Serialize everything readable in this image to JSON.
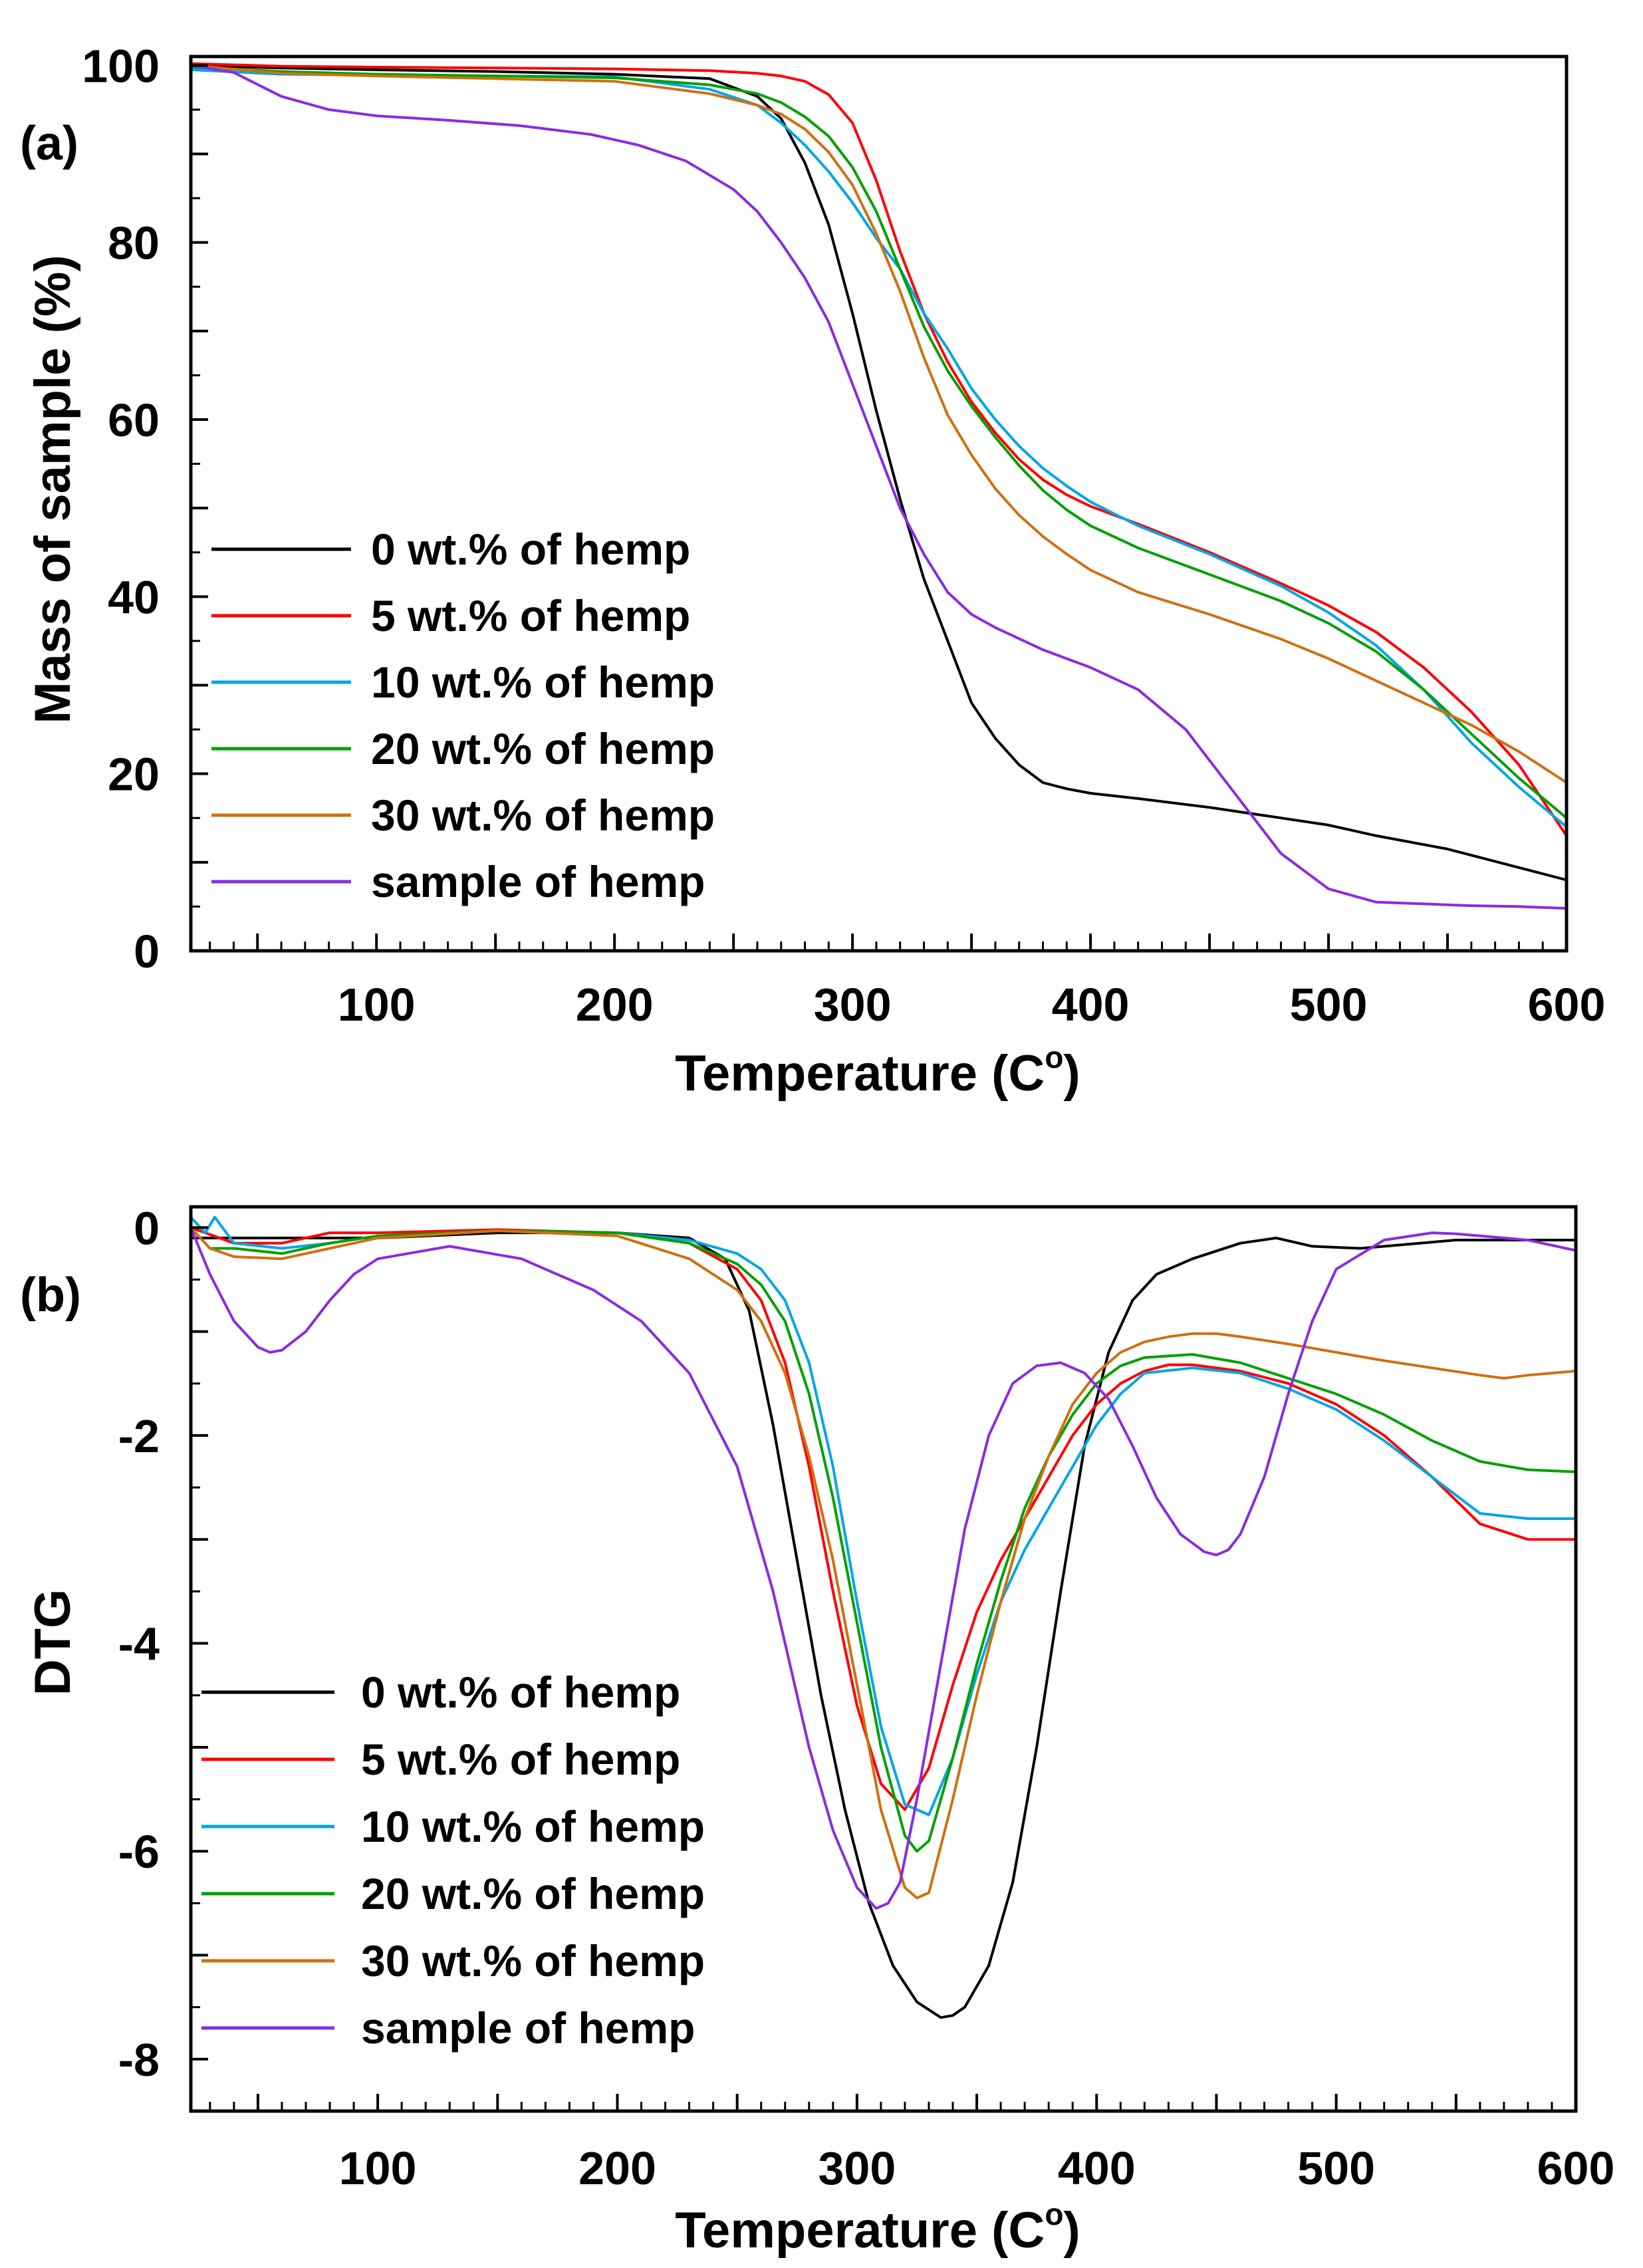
{
  "chart_data": [
    {
      "type": "line",
      "panel_label": "(a)",
      "xlabel": "Temperature (C",
      "xlabel_sup": "o",
      "xlabel_tail": ")",
      "ylabel": "Mass of sample (%)",
      "xlim": [
        22,
        600
      ],
      "ylim": [
        0,
        101
      ],
      "xticks": [
        100,
        200,
        300,
        400,
        500,
        600
      ],
      "xtick_labels": [
        "100",
        "200",
        "300",
        "400",
        "500",
        "600"
      ],
      "yticks": [
        0,
        20,
        40,
        60,
        80,
        100
      ],
      "ytick_labels": [
        "0",
        "20",
        "40",
        "60",
        "80",
        "100"
      ],
      "legend_position": "lower-left",
      "series": [
        {
          "name": "0 wt.% of hemp",
          "color": "#000000",
          "x": [
            22,
            60,
            100,
            150,
            200,
            240,
            260,
            270,
            280,
            290,
            300,
            310,
            320,
            330,
            340,
            350,
            360,
            370,
            380,
            390,
            400,
            420,
            450,
            480,
            500,
            520,
            550,
            580,
            600
          ],
          "y": [
            100,
            99.7,
            99.5,
            99.3,
            99,
            98.5,
            96.5,
            94,
            89,
            82,
            72,
            61,
            51,
            42,
            35,
            28,
            24,
            21,
            19,
            18.3,
            17.8,
            17.2,
            16.2,
            15,
            14.2,
            13,
            11.5,
            9.4,
            8
          ]
        },
        {
          "name": "5 wt.% of hemp",
          "color": "#ff0000",
          "x": [
            22,
            60,
            100,
            150,
            200,
            240,
            260,
            270,
            280,
            290,
            300,
            310,
            320,
            330,
            340,
            350,
            360,
            370,
            380,
            390,
            400,
            420,
            450,
            480,
            500,
            520,
            540,
            560,
            580,
            600
          ],
          "y": [
            100.2,
            99.9,
            99.8,
            99.7,
            99.6,
            99.4,
            99.1,
            98.8,
            98.2,
            96.7,
            93.5,
            87,
            79,
            72,
            66.5,
            62,
            58.5,
            55.5,
            53.2,
            51.5,
            50.2,
            48.2,
            45,
            41.5,
            39,
            36,
            32,
            27,
            21,
            13
          ]
        },
        {
          "name": "10 wt.% of hemp",
          "color": "#00a6e6",
          "x": [
            22,
            60,
            100,
            150,
            200,
            240,
            260,
            270,
            280,
            290,
            300,
            310,
            320,
            330,
            340,
            350,
            360,
            370,
            380,
            390,
            400,
            420,
            450,
            480,
            500,
            520,
            540,
            560,
            580,
            600
          ],
          "y": [
            99.5,
            99,
            98.9,
            98.8,
            98.7,
            97.3,
            95.5,
            93.5,
            91,
            88,
            84.5,
            80.5,
            77,
            72,
            68,
            63.5,
            60,
            57,
            54.5,
            52.5,
            50.7,
            48,
            44.8,
            41.2,
            38.2,
            34.5,
            29.5,
            23.5,
            18.5,
            14
          ]
        },
        {
          "name": "20 wt.% of hemp",
          "color": "#00a000",
          "x": [
            22,
            60,
            100,
            150,
            200,
            240,
            260,
            270,
            280,
            290,
            300,
            310,
            320,
            330,
            340,
            350,
            360,
            370,
            380,
            390,
            400,
            420,
            450,
            480,
            500,
            520,
            540,
            560,
            580,
            600
          ],
          "y": [
            99.8,
            99.3,
            99,
            98.8,
            98.6,
            97.8,
            96.8,
            95.8,
            94.2,
            92,
            88.5,
            83.5,
            77,
            70.5,
            65.5,
            61.5,
            58,
            54.8,
            52,
            49.8,
            48,
            45.5,
            42.5,
            39.5,
            37,
            33.8,
            29.5,
            24.5,
            19.5,
            15
          ]
        },
        {
          "name": "30 wt.% of hemp",
          "color": "#d07010",
          "x": [
            22,
            60,
            100,
            150,
            200,
            240,
            260,
            270,
            280,
            290,
            300,
            310,
            320,
            330,
            340,
            350,
            360,
            370,
            380,
            390,
            400,
            420,
            450,
            480,
            500,
            520,
            540,
            560,
            580,
            600
          ],
          "y": [
            100,
            99.1,
            98.8,
            98.5,
            98.2,
            96.8,
            95.5,
            94.5,
            92.8,
            90.2,
            86.5,
            81,
            74.5,
            67,
            60.5,
            56,
            52.2,
            49.2,
            46.8,
            44.8,
            43,
            40.5,
            38,
            35.2,
            33,
            30.5,
            28,
            25.5,
            22.5,
            19
          ]
        },
        {
          "name": "sample of hemp",
          "color": "#8a2be2",
          "x": [
            22,
            40,
            60,
            80,
            100,
            130,
            160,
            190,
            210,
            230,
            250,
            260,
            270,
            280,
            290,
            300,
            310,
            320,
            330,
            340,
            350,
            360,
            380,
            400,
            420,
            440,
            460,
            480,
            500,
            520,
            540,
            560,
            580,
            600
          ],
          "y": [
            100,
            99.2,
            96.5,
            95,
            94.3,
            93.8,
            93.2,
            92.2,
            91,
            89.2,
            86,
            83.5,
            80,
            76,
            71,
            64,
            57,
            50,
            44.8,
            40.5,
            38,
            36.5,
            34,
            32,
            29.5,
            25,
            18,
            11,
            7,
            5.5,
            5.3,
            5.1,
            5,
            4.8
          ]
        }
      ]
    },
    {
      "type": "line",
      "panel_label": "(b)",
      "xlabel": "Temperature (C",
      "xlabel_sup": "o",
      "xlabel_tail": ")",
      "ylabel": "DTG",
      "xlim": [
        22,
        600
      ],
      "ylim": [
        -8.5,
        0.2
      ],
      "xticks": [
        100,
        200,
        300,
        400,
        500,
        600
      ],
      "xtick_labels": [
        "100",
        "200",
        "300",
        "400",
        "500",
        "600"
      ],
      "yticks": [
        0,
        -2,
        -4,
        -6,
        -8
      ],
      "ytick_labels": [
        "0",
        "-2",
        "-4",
        "-6",
        "-8"
      ],
      "legend_position": "lower-left",
      "series": [
        {
          "name": "0 wt.% of hemp",
          "color": "#000000",
          "x": [
            22,
            60,
            100,
            150,
            200,
            230,
            245,
            255,
            265,
            275,
            285,
            295,
            305,
            315,
            325,
            335,
            340,
            345,
            355,
            365,
            375,
            385,
            395,
            405,
            415,
            425,
            440,
            460,
            475,
            490,
            510,
            550,
            600
          ],
          "y": [
            -0.1,
            -0.1,
            -0.1,
            -0.05,
            -0.05,
            -0.1,
            -0.3,
            -0.8,
            -1.9,
            -3.2,
            -4.5,
            -5.6,
            -6.5,
            -7.1,
            -7.45,
            -7.6,
            -7.58,
            -7.5,
            -7.1,
            -6.3,
            -5,
            -3.5,
            -2.1,
            -1.2,
            -0.7,
            -0.45,
            -0.3,
            -0.15,
            -0.1,
            -0.18,
            -0.2,
            -0.12,
            -0.12
          ]
        },
        {
          "name": "5 wt.% of hemp",
          "color": "#ff0000",
          "x": [
            22,
            40,
            60,
            80,
            100,
            150,
            200,
            230,
            250,
            260,
            270,
            280,
            290,
            300,
            310,
            320,
            330,
            340,
            350,
            360,
            370,
            380,
            390,
            400,
            410,
            420,
            430,
            440,
            460,
            480,
            500,
            520,
            540,
            560,
            580,
            600
          ],
          "y": [
            0,
            -0.15,
            -0.15,
            -0.05,
            -0.05,
            -0.02,
            -0.05,
            -0.15,
            -0.4,
            -0.7,
            -1.3,
            -2.3,
            -3.5,
            -4.6,
            -5.35,
            -5.6,
            -5.2,
            -4.4,
            -3.7,
            -3.2,
            -2.8,
            -2.4,
            -2,
            -1.7,
            -1.5,
            -1.38,
            -1.32,
            -1.32,
            -1.38,
            -1.5,
            -1.7,
            -2,
            -2.4,
            -2.85,
            -3,
            -3
          ]
        },
        {
          "name": "10 wt.% of hemp",
          "color": "#00a6e6",
          "x": [
            22,
            28,
            32,
            40,
            60,
            80,
            100,
            150,
            200,
            230,
            250,
            260,
            270,
            280,
            290,
            300,
            310,
            320,
            330,
            340,
            350,
            360,
            370,
            380,
            390,
            400,
            410,
            420,
            440,
            460,
            480,
            500,
            520,
            540,
            560,
            580,
            600
          ],
          "y": [
            0.1,
            -0.05,
            0.1,
            -0.15,
            -0.2,
            -0.15,
            -0.08,
            -0.03,
            -0.05,
            -0.12,
            -0.25,
            -0.4,
            -0.7,
            -1.3,
            -2.3,
            -3.6,
            -4.8,
            -5.55,
            -5.65,
            -5.1,
            -4.3,
            -3.6,
            -3.1,
            -2.7,
            -2.3,
            -1.9,
            -1.6,
            -1.4,
            -1.35,
            -1.4,
            -1.55,
            -1.75,
            -2.05,
            -2.4,
            -2.75,
            -2.8,
            -2.8
          ]
        },
        {
          "name": "20 wt.% of hemp",
          "color": "#00a000",
          "x": [
            22,
            30,
            40,
            60,
            80,
            100,
            150,
            200,
            230,
            250,
            260,
            270,
            280,
            290,
            300,
            310,
            320,
            325,
            330,
            340,
            350,
            360,
            370,
            380,
            390,
            400,
            410,
            420,
            440,
            460,
            480,
            500,
            520,
            540,
            560,
            580,
            600
          ],
          "y": [
            0,
            -0.2,
            -0.2,
            -0.25,
            -0.15,
            -0.08,
            -0.03,
            -0.05,
            -0.15,
            -0.35,
            -0.55,
            -0.9,
            -1.6,
            -2.6,
            -3.8,
            -5,
            -5.85,
            -6,
            -5.9,
            -5.1,
            -4.2,
            -3.4,
            -2.7,
            -2.2,
            -1.8,
            -1.5,
            -1.33,
            -1.25,
            -1.22,
            -1.3,
            -1.45,
            -1.6,
            -1.8,
            -2.05,
            -2.25,
            -2.33,
            -2.35
          ]
        },
        {
          "name": "30 wt.% of hemp",
          "color": "#d07010",
          "x": [
            22,
            30,
            40,
            60,
            80,
            100,
            150,
            200,
            230,
            250,
            260,
            270,
            280,
            290,
            300,
            310,
            320,
            325,
            330,
            340,
            350,
            360,
            370,
            380,
            390,
            400,
            410,
            420,
            430,
            440,
            450,
            460,
            480,
            500,
            520,
            540,
            560,
            570,
            580,
            600
          ],
          "y": [
            0,
            -0.2,
            -0.28,
            -0.3,
            -0.2,
            -0.1,
            -0.03,
            -0.08,
            -0.3,
            -0.6,
            -0.9,
            -1.4,
            -2.2,
            -3.2,
            -4.4,
            -5.6,
            -6.35,
            -6.45,
            -6.4,
            -5.5,
            -4.5,
            -3.6,
            -2.8,
            -2.2,
            -1.7,
            -1.4,
            -1.2,
            -1.1,
            -1.05,
            -1.02,
            -1.02,
            -1.05,
            -1.12,
            -1.2,
            -1.28,
            -1.35,
            -1.42,
            -1.45,
            -1.42,
            -1.38
          ]
        },
        {
          "name": "sample of hemp",
          "color": "#8a2be2",
          "x": [
            22,
            30,
            40,
            50,
            55,
            60,
            70,
            80,
            90,
            100,
            130,
            160,
            190,
            210,
            230,
            250,
            265,
            280,
            290,
            300,
            308,
            313,
            318,
            325,
            335,
            345,
            355,
            365,
            375,
            385,
            395,
            405,
            415,
            425,
            435,
            445,
            450,
            455,
            460,
            470,
            480,
            490,
            500,
            520,
            540,
            550,
            560,
            580,
            600
          ],
          "y": [
            0,
            -0.45,
            -0.9,
            -1.15,
            -1.2,
            -1.18,
            -1,
            -0.7,
            -0.45,
            -0.3,
            -0.18,
            -0.3,
            -0.6,
            -0.9,
            -1.4,
            -2.3,
            -3.5,
            -5,
            -5.8,
            -6.35,
            -6.55,
            -6.5,
            -6.3,
            -5.5,
            -4.2,
            -2.9,
            -2,
            -1.5,
            -1.33,
            -1.3,
            -1.4,
            -1.65,
            -2.1,
            -2.6,
            -2.95,
            -3.12,
            -3.15,
            -3.1,
            -2.95,
            -2.4,
            -1.6,
            -0.9,
            -0.4,
            -0.12,
            -0.05,
            -0.06,
            -0.08,
            -0.12,
            -0.22
          ]
        }
      ]
    }
  ]
}
